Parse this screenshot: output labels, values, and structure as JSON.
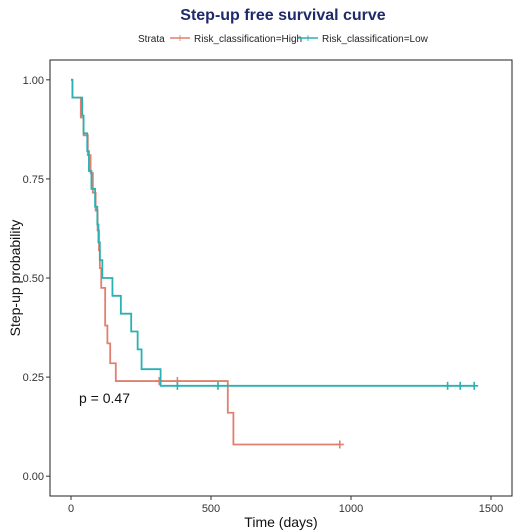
{
  "chart_data": {
    "type": "line",
    "title": "Step-up free survival curve",
    "xlabel": "Time (days)",
    "ylabel": "Step-up probability",
    "xlim": [
      -75,
      1575
    ],
    "ylim": [
      -0.05,
      1.05
    ],
    "xticks": [
      0,
      500,
      1000,
      1500
    ],
    "yticks": [
      0.0,
      0.25,
      0.5,
      0.75,
      1.0
    ],
    "xtick_labels": [
      "0",
      "500",
      "1000",
      "1500"
    ],
    "ytick_labels": [
      "0.00",
      "0.25",
      "0.50",
      "0.75",
      "1.00"
    ],
    "grid": false,
    "legend": {
      "title": "Strata",
      "placement": "top"
    },
    "annotation": "p = 0.47",
    "series": [
      {
        "name": "Risk_classification=High",
        "color": "#e0806f",
        "steps": [
          [
            0,
            1.0
          ],
          [
            5,
            0.955
          ],
          [
            35,
            0.905
          ],
          [
            45,
            0.86
          ],
          [
            60,
            0.81
          ],
          [
            70,
            0.765
          ],
          [
            78,
            0.715
          ],
          [
            88,
            0.67
          ],
          [
            95,
            0.62
          ],
          [
            100,
            0.57
          ],
          [
            103,
            0.525
          ],
          [
            108,
            0.475
          ],
          [
            122,
            0.38
          ],
          [
            130,
            0.335
          ],
          [
            140,
            0.285
          ],
          [
            160,
            0.24
          ],
          [
            560,
            0.16
          ],
          [
            580,
            0.08
          ],
          [
            960,
            0.08
          ]
        ],
        "censored": [
          [
            315,
            0.24
          ],
          [
            380,
            0.24
          ],
          [
            960,
            0.08
          ]
        ]
      },
      {
        "name": "Risk_classification=Low",
        "color": "#2bb1b2",
        "steps": [
          [
            0,
            1.0
          ],
          [
            5,
            0.955
          ],
          [
            40,
            0.91
          ],
          [
            45,
            0.865
          ],
          [
            58,
            0.82
          ],
          [
            64,
            0.77
          ],
          [
            73,
            0.725
          ],
          [
            86,
            0.68
          ],
          [
            94,
            0.635
          ],
          [
            98,
            0.59
          ],
          [
            103,
            0.545
          ],
          [
            112,
            0.5
          ],
          [
            148,
            0.455
          ],
          [
            178,
            0.41
          ],
          [
            215,
            0.365
          ],
          [
            238,
            0.32
          ],
          [
            252,
            0.27
          ],
          [
            320,
            0.228
          ],
          [
            1440,
            0.228
          ]
        ],
        "censored": [
          [
            380,
            0.228
          ],
          [
            525,
            0.228
          ],
          [
            1345,
            0.228
          ],
          [
            1390,
            0.228
          ],
          [
            1440,
            0.228
          ]
        ]
      }
    ]
  }
}
